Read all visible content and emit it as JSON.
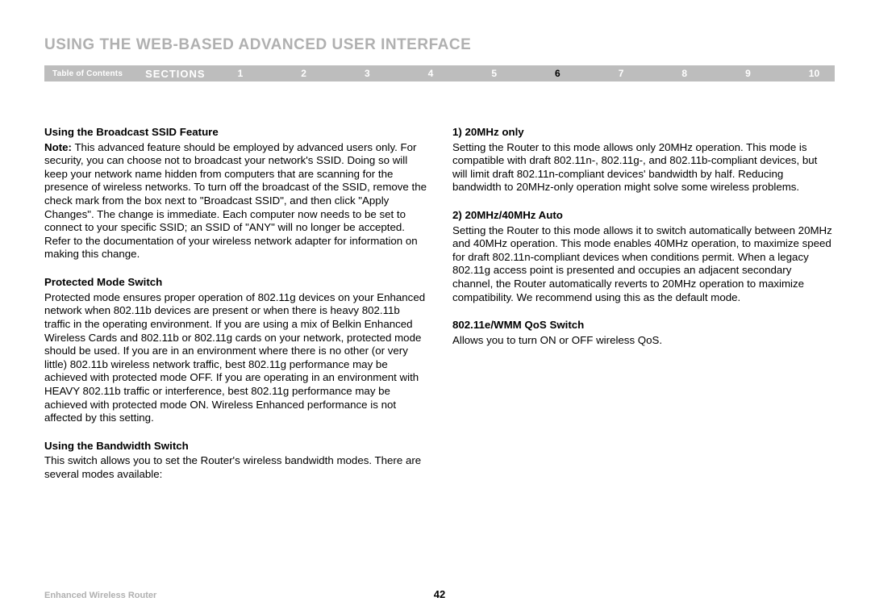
{
  "title": "USING THE WEB-BASED ADVANCED USER INTERFACE",
  "nav": {
    "toc": "Table of Contents",
    "sections": "SECTIONS",
    "numbers": [
      "1",
      "2",
      "3",
      "4",
      "5",
      "6",
      "7",
      "8",
      "9",
      "10"
    ],
    "active_index": 5
  },
  "left": {
    "h1": "Using the Broadcast SSID Feature",
    "note_label": "Note:",
    "p1": " This advanced feature should be employed by advanced users only. For security, you can choose not to broadcast your network's SSID. Doing so will keep your network name hidden from computers that are scanning for the presence of wireless networks. To turn off the broadcast of the SSID, remove the check mark from the box next to \"Broadcast SSID\", and then click \"Apply Changes\". The change is immediate. Each computer now needs to be set to connect to your specific SSID; an SSID of \"ANY\" will no longer be accepted. Refer to the documentation of your wireless network adapter for information on making this change.",
    "h2": "Protected Mode Switch",
    "p2": "Protected mode ensures proper operation of 802.11g devices on your Enhanced network when 802.11b devices are present or when there is heavy 802.11b traffic in the operating environment. If you are using a mix of Belkin Enhanced Wireless Cards and 802.11b or 802.11g cards on your network, protected mode should be used. If you are in an environment where there is no other (or very little) 802.11b wireless network traffic, best 802.11g performance may be achieved with protected mode OFF. If you are operating in an environment with HEAVY 802.11b traffic or interference, best 802.11g performance may be achieved with protected mode ON. Wireless Enhanced performance is not affected by this setting.",
    "h3": "Using the Bandwidth Switch",
    "p3": "This switch allows you to set the Router's wireless bandwidth modes. There are several modes available:"
  },
  "right": {
    "h1": "1) 20MHz only",
    "p1": "Setting the Router to this mode allows only 20MHz operation. This mode is compatible with draft 802.11n-, 802.11g-, and 802.11b-compliant devices, but will limit draft 802.11n-compliant devices' bandwidth by half. Reducing bandwidth to 20MHz-only operation might solve some wireless problems.",
    "h2": "2) 20MHz/40MHz Auto",
    "p2": "Setting the Router to this mode allows it to switch automatically between 20MHz and 40MHz operation. This mode enables 40MHz operation, to maximize speed for draft 802.11n-compliant devices when conditions permit. When a legacy 802.11g access point is presented and occupies an adjacent secondary channel, the Router automatically reverts to 20MHz operation to maximize compatibility. We recommend using this as the default mode.",
    "h3": "802.11e/WMM QoS Switch",
    "p3": "Allows you to turn ON or OFF wireless QoS."
  },
  "footer": {
    "product": "Enhanced Wireless Router",
    "page": "42"
  },
  "colors": {
    "title_color": "#b0b0b0",
    "nav_bg": "#bdbdbd",
    "nav_text": "#ffffff",
    "nav_active": "#000000",
    "footer_color": "#b0b0b0"
  }
}
